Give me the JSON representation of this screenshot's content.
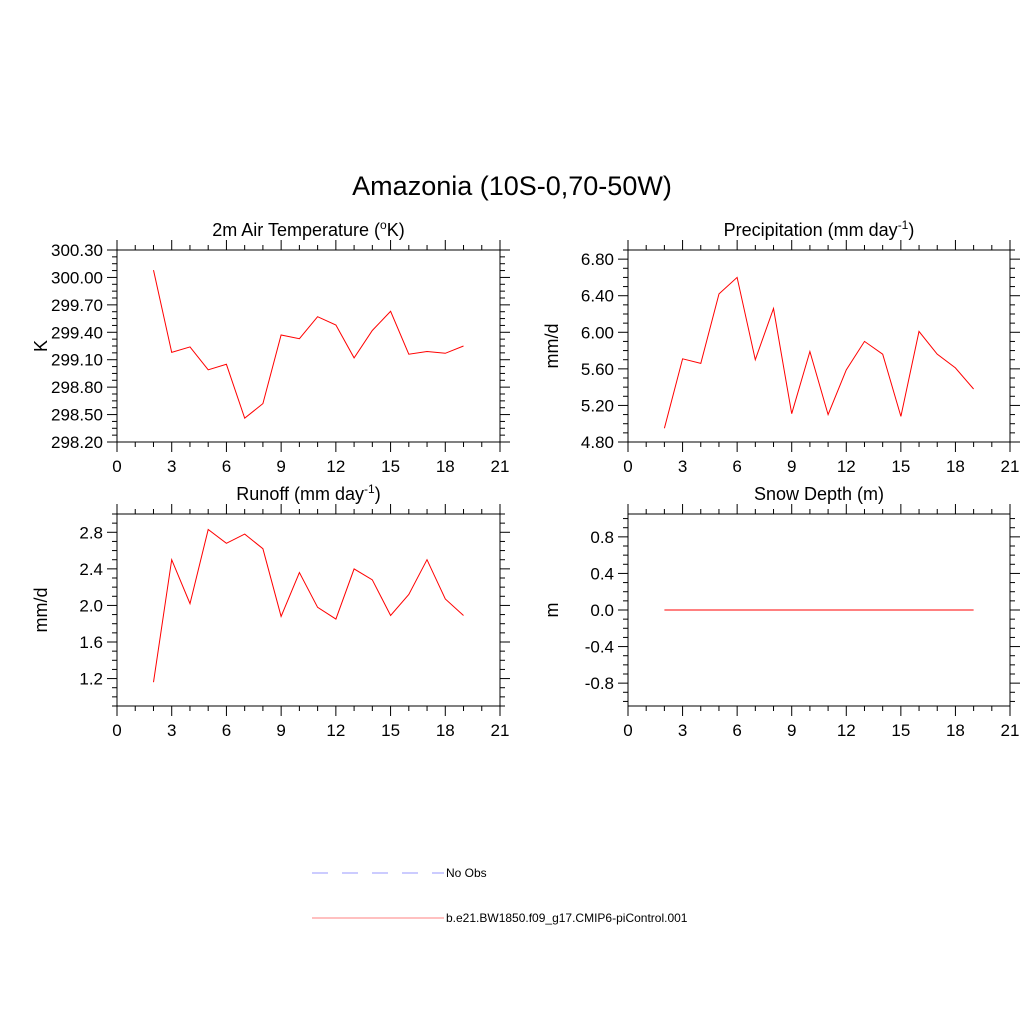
{
  "title": "Amazonia (10S-0,70-50W)",
  "colors": {
    "series": "#ff0000",
    "obs": "#9999ff",
    "axis": "#000000",
    "background": "#ffffff"
  },
  "legend": {
    "position": "bottom-center",
    "entries": [
      {
        "label": "No Obs",
        "color": "#9999ff",
        "style": "dashed"
      },
      {
        "label": "b.e21.BW1850.f09_g17.CMIP6-piControl.001",
        "color": "#ff8080",
        "style": "solid"
      }
    ]
  },
  "chart_data": [
    {
      "type": "line",
      "title": "2m Air Temperature (",
      "title_sup": "o",
      "title_tail": "K)",
      "xlabel": "",
      "ylabel": "K",
      "xlim": [
        0,
        21
      ],
      "ylim": [
        298.2,
        300.3
      ],
      "xticks": [
        0,
        3,
        6,
        9,
        12,
        15,
        18,
        21
      ],
      "xtick_labels": [
        "0",
        "3",
        "6",
        "9",
        "12",
        "15",
        "18",
        "21"
      ],
      "yticks": [
        298.2,
        298.5,
        298.8,
        299.1,
        299.4,
        299.7,
        300.0,
        300.3
      ],
      "ytick_labels": [
        "298.20",
        "298.50",
        "298.80",
        "299.10",
        "299.40",
        "299.70",
        "300.00",
        "300.30"
      ],
      "series": [
        {
          "name": "b.e21.BW1850.f09_g17.CMIP6-piControl.001",
          "x": [
            2,
            3,
            4,
            5,
            6,
            7,
            8,
            9,
            10,
            11,
            12,
            13,
            14,
            15,
            16,
            17,
            18,
            19
          ],
          "values": [
            300.08,
            299.18,
            299.24,
            298.99,
            299.05,
            298.46,
            298.62,
            299.37,
            299.33,
            299.57,
            299.48,
            299.12,
            299.42,
            299.63,
            299.16,
            299.19,
            299.17,
            299.25
          ]
        }
      ]
    },
    {
      "type": "line",
      "title": "Precipitation (mm day",
      "title_sup": "-1",
      "title_tail": ")",
      "xlabel": "",
      "ylabel": "mm/d",
      "xlim": [
        0,
        21
      ],
      "ylim": [
        4.8,
        6.9
      ],
      "xticks": [
        0,
        3,
        6,
        9,
        12,
        15,
        18,
        21
      ],
      "xtick_labels": [
        "0",
        "3",
        "6",
        "9",
        "12",
        "15",
        "18",
        "21"
      ],
      "yticks": [
        4.8,
        5.2,
        5.6,
        6.0,
        6.4,
        6.8
      ],
      "ytick_labels": [
        "4.80",
        "5.20",
        "5.60",
        "6.00",
        "6.40",
        "6.80"
      ],
      "series": [
        {
          "name": "b.e21.BW1850.f09_g17.CMIP6-piControl.001",
          "x": [
            2,
            3,
            4,
            5,
            6,
            7,
            8,
            9,
            10,
            11,
            12,
            13,
            14,
            15,
            16,
            17,
            18,
            19
          ],
          "values": [
            4.95,
            5.71,
            5.66,
            6.42,
            6.6,
            5.7,
            6.26,
            5.11,
            5.79,
            5.1,
            5.59,
            5.9,
            5.76,
            5.08,
            6.01,
            5.76,
            5.61,
            5.38
          ]
        }
      ]
    },
    {
      "type": "line",
      "title": "Runoff (mm day",
      "title_sup": "-1",
      "title_tail": ")",
      "xlabel": "",
      "ylabel": "mm/d",
      "xlim": [
        0,
        21
      ],
      "ylim": [
        0.9,
        3.0
      ],
      "xticks": [
        0,
        3,
        6,
        9,
        12,
        15,
        18,
        21
      ],
      "xtick_labels": [
        "0",
        "3",
        "6",
        "9",
        "12",
        "15",
        "18",
        "21"
      ],
      "yticks": [
        1.2,
        1.6,
        2.0,
        2.4,
        2.8
      ],
      "ytick_labels": [
        "1.2",
        "1.6",
        "2.0",
        "2.4",
        "2.8"
      ],
      "series": [
        {
          "name": "b.e21.BW1850.f09_g17.CMIP6-piControl.001",
          "x": [
            2,
            3,
            4,
            5,
            6,
            7,
            8,
            9,
            10,
            11,
            12,
            13,
            14,
            15,
            16,
            17,
            18,
            19
          ],
          "values": [
            1.16,
            2.5,
            2.02,
            2.83,
            2.68,
            2.78,
            2.62,
            1.88,
            2.36,
            1.98,
            1.85,
            2.4,
            2.28,
            1.89,
            2.12,
            2.5,
            2.07,
            1.89
          ]
        }
      ]
    },
    {
      "type": "line",
      "title": "Snow Depth (m)",
      "title_sup": "",
      "title_tail": "",
      "xlabel": "",
      "ylabel": "m",
      "xlim": [
        0,
        21
      ],
      "ylim": [
        -1.05,
        1.05
      ],
      "xticks": [
        0,
        3,
        6,
        9,
        12,
        15,
        18,
        21
      ],
      "xtick_labels": [
        "0",
        "3",
        "6",
        "9",
        "12",
        "15",
        "18",
        "21"
      ],
      "yticks": [
        -0.8,
        -0.4,
        0.0,
        0.4,
        0.8
      ],
      "ytick_labels": [
        "-0.8",
        "-0.4",
        "0.0",
        "0.4",
        "0.8"
      ],
      "series": [
        {
          "name": "b.e21.BW1850.f09_g17.CMIP6-piControl.001",
          "x": [
            2,
            3,
            4,
            5,
            6,
            7,
            8,
            9,
            10,
            11,
            12,
            13,
            14,
            15,
            16,
            17,
            18,
            19
          ],
          "values": [
            0,
            0,
            0,
            0,
            0,
            0,
            0,
            0,
            0,
            0,
            0,
            0,
            0,
            0,
            0,
            0,
            0,
            0
          ]
        }
      ]
    }
  ]
}
